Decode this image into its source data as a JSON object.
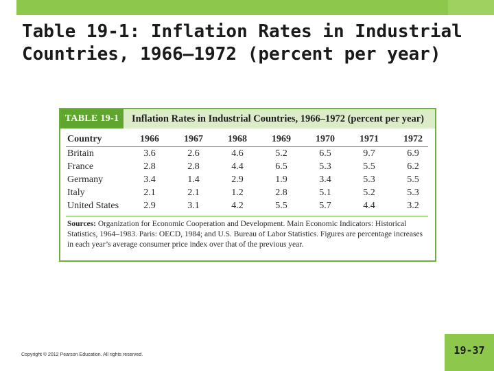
{
  "slide": {
    "title": "Table 19-1: Inflation Rates in Industrial Countries, 1966–1972 (percent per year)",
    "copyright": "Copyright © 2012 Pearson Education. All rights reserved.",
    "page_number": "19-37",
    "colors": {
      "accent": "#8dc74b",
      "table_header": "#5fa62e",
      "caption_band": "#dcecc8"
    }
  },
  "table": {
    "label": "TABLE 19-1",
    "caption": "Inflation Rates in Industrial Countries, 1966–1972 (percent per year)",
    "columns": [
      "Country",
      "1966",
      "1967",
      "1968",
      "1969",
      "1970",
      "1971",
      "1972"
    ],
    "rows": [
      [
        "Britain",
        "3.6",
        "2.6",
        "4.6",
        "5.2",
        "6.5",
        "9.7",
        "6.9"
      ],
      [
        "France",
        "2.8",
        "2.8",
        "4.4",
        "6.5",
        "5.3",
        "5.5",
        "6.2"
      ],
      [
        "Germany",
        "3.4",
        "1.4",
        "2.9",
        "1.9",
        "3.4",
        "5.3",
        "5.5"
      ],
      [
        "Italy",
        "2.1",
        "2.1",
        "1.2",
        "2.8",
        "5.1",
        "5.2",
        "5.3"
      ],
      [
        "United States",
        "2.9",
        "3.1",
        "4.2",
        "5.5",
        "5.7",
        "4.4",
        "3.2"
      ]
    ],
    "sources_label": "Sources:",
    "sources_text": "Organization for Economic Cooperation and Development. Main Economic Indicators: Historical Statistics, 1964–1983. Paris: OECD, 1984; and U.S. Bureau of Labor Statistics. Figures are percentage increases in each year’s average consumer price index over that of the previous year."
  }
}
